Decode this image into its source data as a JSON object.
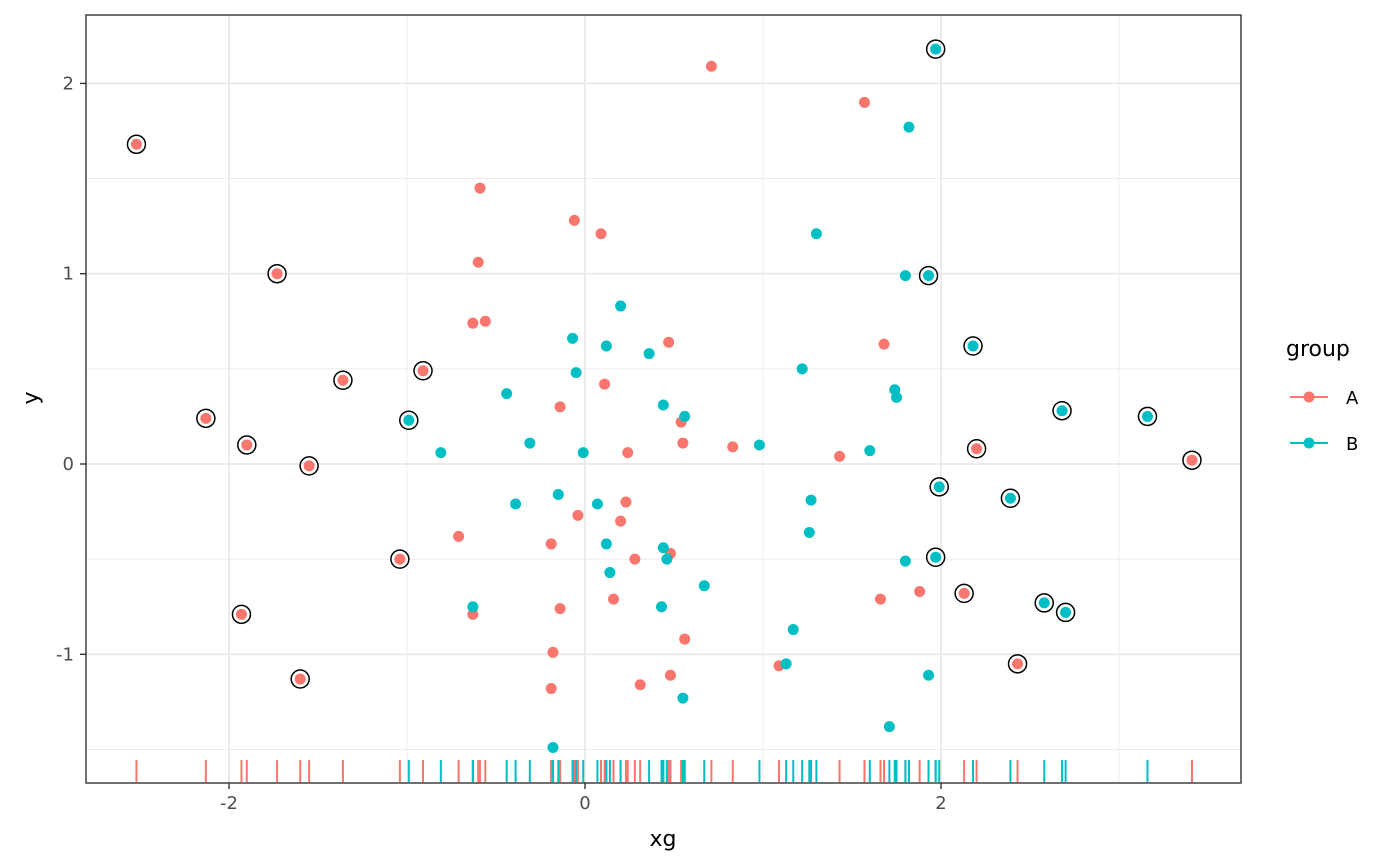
{
  "chart_data": {
    "type": "scatter",
    "xlabel": "xg",
    "ylabel": "y",
    "xlim": [
      -2.8,
      3.7
    ],
    "ylim": [
      -1.67,
      2.35
    ],
    "x_ticks": [
      -2,
      0,
      2
    ],
    "x_tick_labels": [
      "-2",
      "0",
      "2"
    ],
    "y_ticks": [
      -1,
      0,
      1,
      2
    ],
    "y_tick_labels": [
      "-1",
      "0",
      "1",
      "2"
    ],
    "grid": true,
    "rug": "bottom",
    "legend": {
      "title": "group",
      "position": "right",
      "entries": [
        {
          "label": "A",
          "color": "#F8766D"
        },
        {
          "label": "B",
          "color": "#00BFC4"
        }
      ]
    },
    "series": [
      {
        "name": "A",
        "color": "#F8766D",
        "points": [
          [
            -2.52,
            1.68
          ],
          [
            -2.13,
            0.24
          ],
          [
            -1.93,
            -0.79
          ],
          [
            -1.9,
            0.1
          ],
          [
            -1.73,
            1.0
          ],
          [
            -1.6,
            -1.13
          ],
          [
            -1.55,
            -0.01
          ],
          [
            -1.36,
            0.44
          ],
          [
            -1.04,
            -0.5
          ],
          [
            -0.91,
            0.49
          ],
          [
            -0.71,
            -0.38
          ],
          [
            -0.63,
            0.74
          ],
          [
            -0.63,
            -0.79
          ],
          [
            -0.6,
            1.06
          ],
          [
            -0.59,
            1.45
          ],
          [
            -0.56,
            0.75
          ],
          [
            -0.19,
            -0.42
          ],
          [
            -0.18,
            -0.99
          ],
          [
            -0.19,
            -1.18
          ],
          [
            -0.14,
            0.3
          ],
          [
            -0.14,
            -0.76
          ],
          [
            -0.06,
            1.28
          ],
          [
            -0.04,
            -0.27
          ],
          [
            0.09,
            1.21
          ],
          [
            0.11,
            0.42
          ],
          [
            0.16,
            -0.71
          ],
          [
            0.2,
            -0.3
          ],
          [
            0.23,
            -0.2
          ],
          [
            0.24,
            0.06
          ],
          [
            0.28,
            -0.5
          ],
          [
            0.31,
            -1.16
          ],
          [
            0.47,
            0.64
          ],
          [
            0.48,
            -0.47
          ],
          [
            0.48,
            -1.11
          ],
          [
            0.54,
            0.22
          ],
          [
            0.55,
            0.11
          ],
          [
            0.56,
            -0.92
          ],
          [
            0.71,
            2.09
          ],
          [
            0.83,
            0.09
          ],
          [
            1.09,
            -1.06
          ],
          [
            1.43,
            0.04
          ],
          [
            1.57,
            1.9
          ],
          [
            1.66,
            -0.71
          ],
          [
            1.68,
            0.63
          ],
          [
            1.88,
            -0.67
          ],
          [
            2.13,
            -0.68
          ],
          [
            2.2,
            0.08
          ],
          [
            2.43,
            -1.05
          ],
          [
            3.41,
            0.02
          ]
        ]
      },
      {
        "name": "B",
        "color": "#00BFC4",
        "points": [
          [
            -0.99,
            0.23
          ],
          [
            -0.81,
            0.06
          ],
          [
            -0.63,
            -0.75
          ],
          [
            -0.44,
            0.37
          ],
          [
            -0.39,
            -0.21
          ],
          [
            -0.31,
            0.11
          ],
          [
            -0.18,
            -1.49
          ],
          [
            -0.15,
            -0.16
          ],
          [
            -0.07,
            0.66
          ],
          [
            -0.05,
            0.48
          ],
          [
            -0.01,
            0.06
          ],
          [
            0.07,
            -0.21
          ],
          [
            0.12,
            0.62
          ],
          [
            0.12,
            -0.42
          ],
          [
            0.14,
            -0.57
          ],
          [
            0.2,
            0.83
          ],
          [
            0.36,
            0.58
          ],
          [
            0.43,
            -0.75
          ],
          [
            0.44,
            0.31
          ],
          [
            0.44,
            -0.44
          ],
          [
            0.46,
            -0.5
          ],
          [
            0.55,
            -1.23
          ],
          [
            0.56,
            0.25
          ],
          [
            0.67,
            -0.64
          ],
          [
            0.98,
            0.1
          ],
          [
            1.13,
            -1.05
          ],
          [
            1.17,
            -0.87
          ],
          [
            1.22,
            0.5
          ],
          [
            1.26,
            -0.36
          ],
          [
            1.27,
            -0.19
          ],
          [
            1.3,
            1.21
          ],
          [
            1.6,
            0.07
          ],
          [
            1.71,
            -1.38
          ],
          [
            1.74,
            0.39
          ],
          [
            1.75,
            0.35
          ],
          [
            1.8,
            0.99
          ],
          [
            1.8,
            -0.51
          ],
          [
            1.82,
            1.77
          ],
          [
            1.93,
            -1.11
          ],
          [
            1.93,
            0.99
          ],
          [
            1.97,
            2.18
          ],
          [
            1.97,
            -0.49
          ],
          [
            1.99,
            -0.12
          ],
          [
            2.18,
            0.62
          ],
          [
            2.39,
            -0.18
          ],
          [
            2.58,
            -0.73
          ],
          [
            2.68,
            0.28
          ],
          [
            2.7,
            -0.78
          ],
          [
            3.16,
            0.25
          ]
        ]
      }
    ],
    "highlighted_points": [
      [
        -2.52,
        1.68
      ],
      [
        -2.13,
        0.24
      ],
      [
        -1.93,
        -0.79
      ],
      [
        -1.9,
        0.1
      ],
      [
        -1.73,
        1.0
      ],
      [
        -1.6,
        -1.13
      ],
      [
        -1.55,
        -0.01
      ],
      [
        -1.36,
        0.44
      ],
      [
        -1.04,
        -0.5
      ],
      [
        -0.91,
        0.49
      ],
      [
        -0.99,
        0.23
      ],
      [
        1.93,
        0.99
      ],
      [
        1.97,
        2.18
      ],
      [
        1.97,
        -0.49
      ],
      [
        1.99,
        -0.12
      ],
      [
        2.13,
        -0.68
      ],
      [
        2.18,
        0.62
      ],
      [
        2.2,
        0.08
      ],
      [
        2.39,
        -0.18
      ],
      [
        2.43,
        -1.05
      ],
      [
        2.58,
        -0.73
      ],
      [
        2.68,
        0.28
      ],
      [
        2.7,
        -0.78
      ],
      [
        3.16,
        0.25
      ],
      [
        3.41,
        0.02
      ]
    ]
  }
}
